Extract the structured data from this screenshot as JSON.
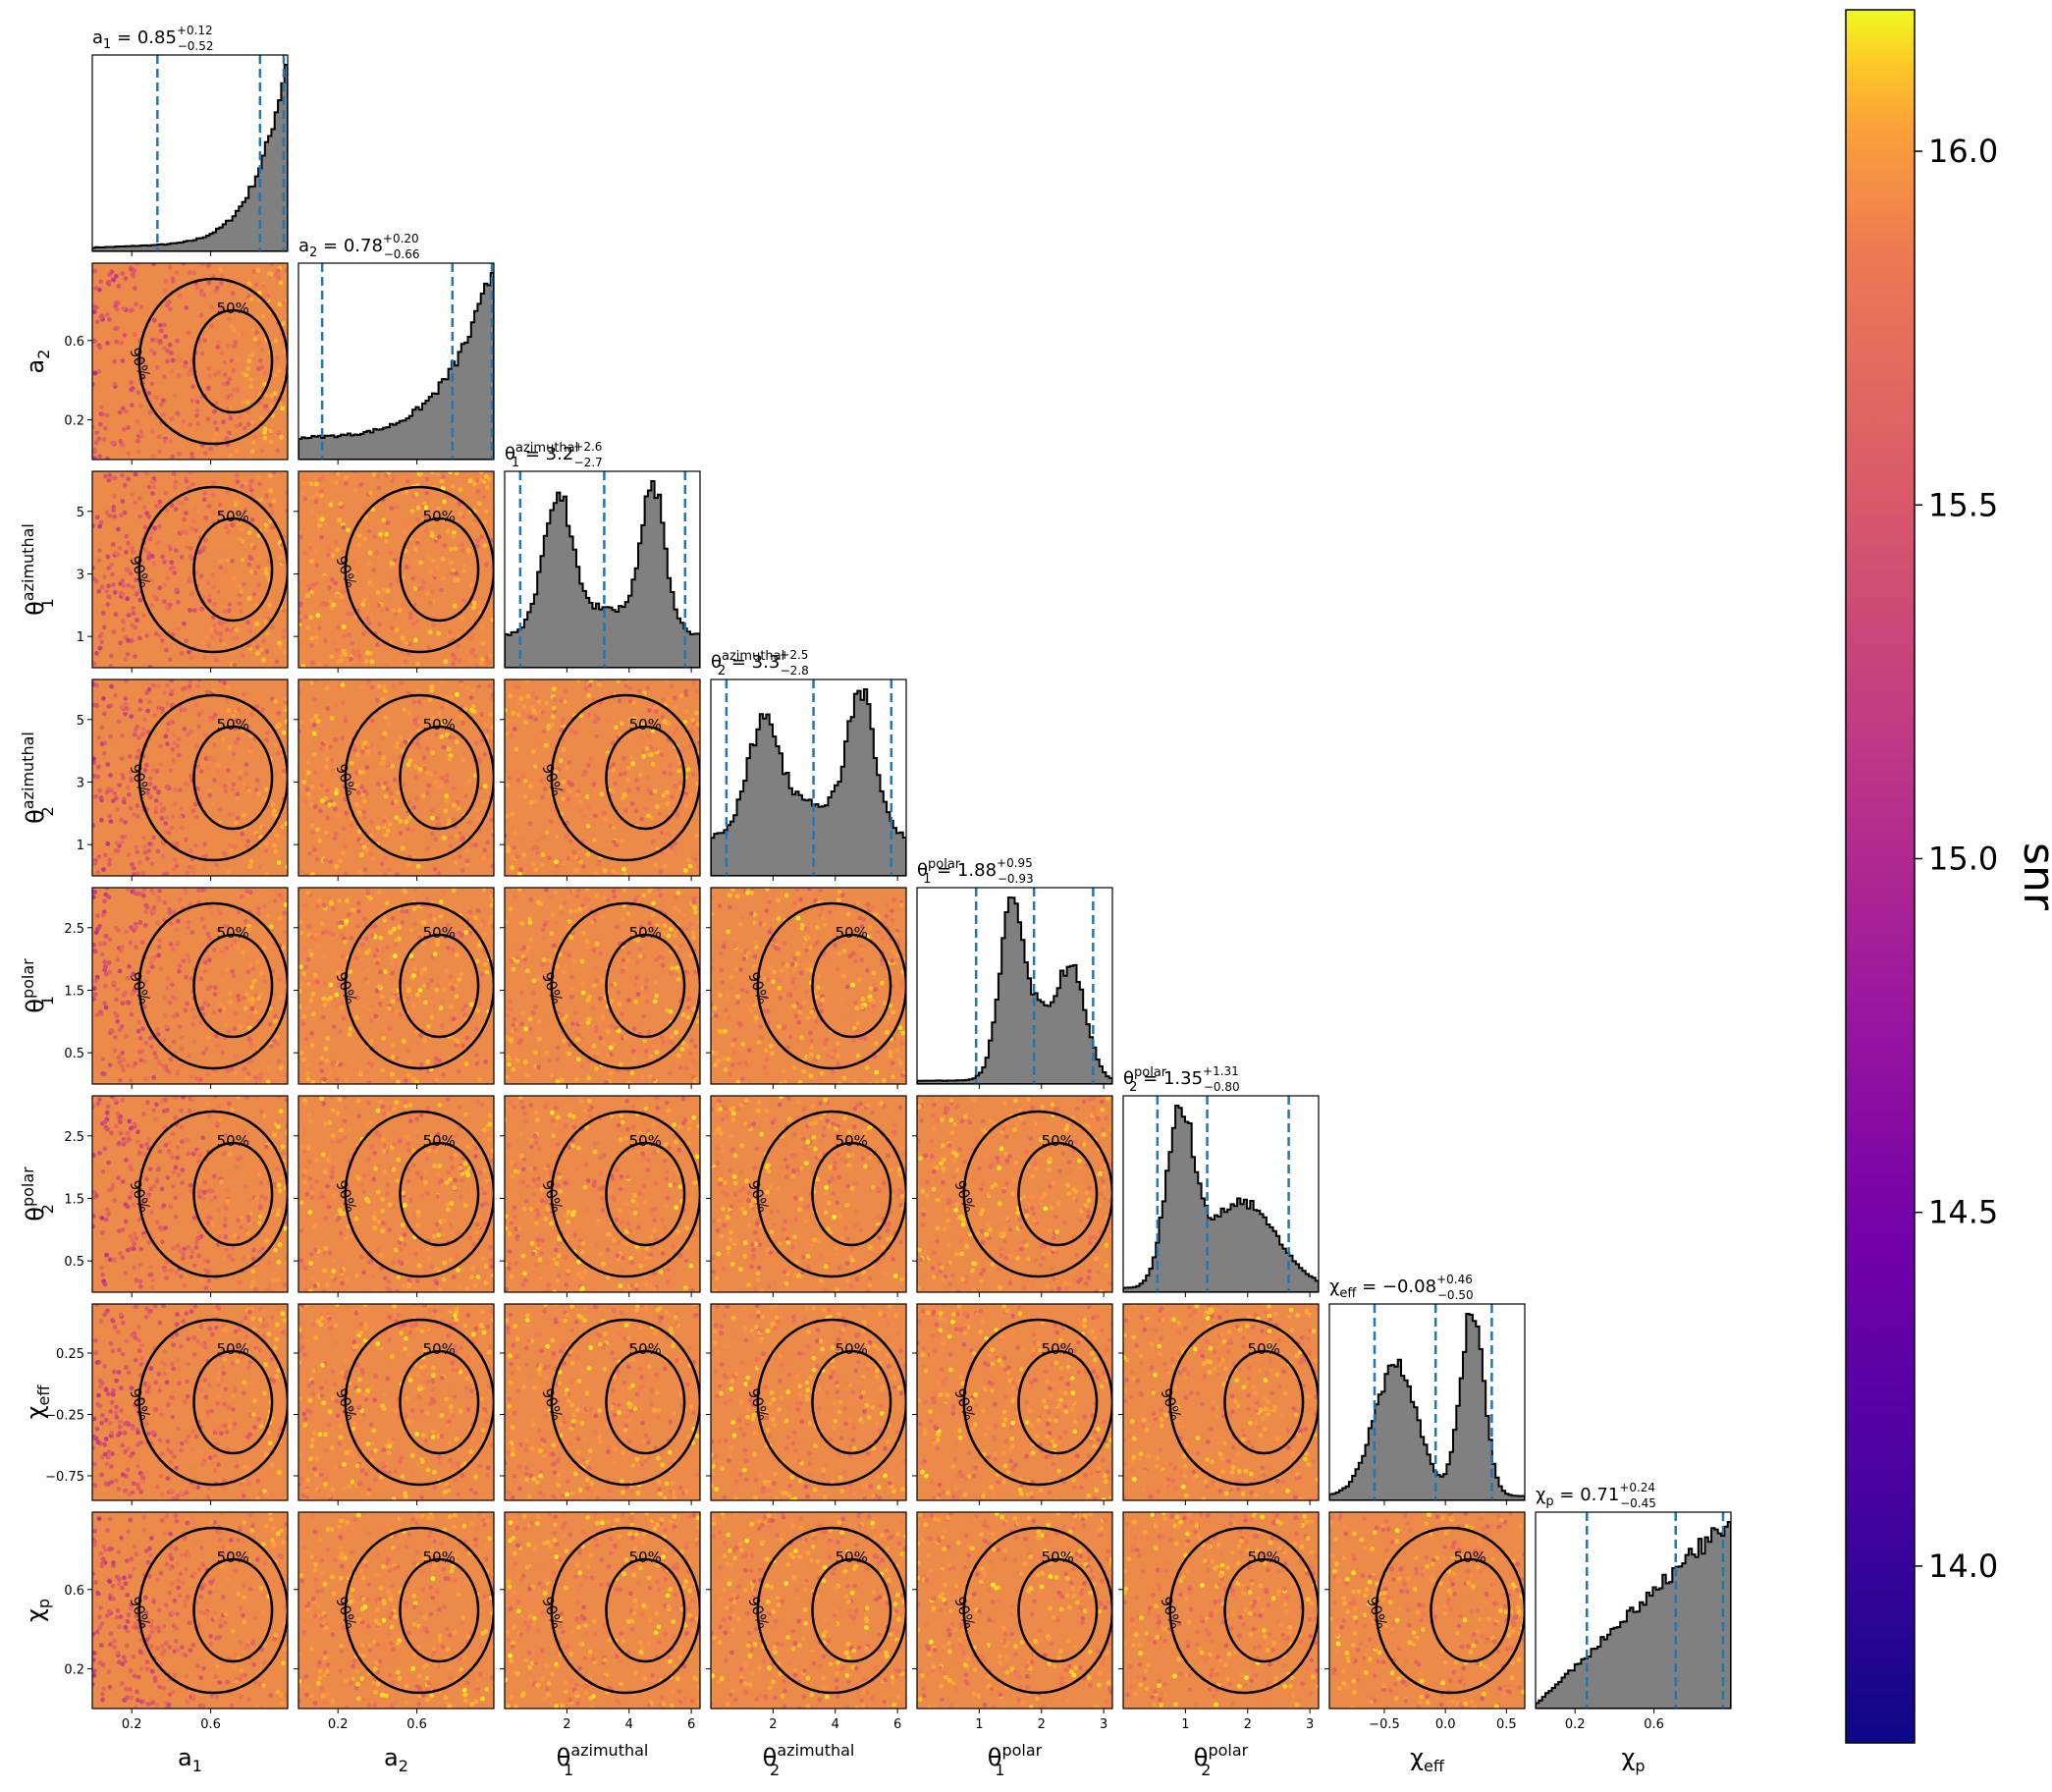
{
  "chart_data": {
    "type": "corner",
    "parameters": [
      {
        "key": "a1",
        "axis_label": "a₁",
        "display": "a",
        "sub": "1",
        "sup": "",
        "median": "0.85",
        "plus": "+0.12",
        "minus": "−0.52",
        "range": [
          0.0,
          0.99
        ],
        "ticks": [
          0.2,
          0.6
        ],
        "tick_labels": [
          "0.2",
          "0.6"
        ],
        "quantiles": [
          0.33,
          0.85,
          0.97
        ],
        "hist_shape": "rising_steep"
      },
      {
        "key": "a2",
        "axis_label": "a₂",
        "display": "a",
        "sub": "2",
        "sup": "",
        "median": "0.78",
        "plus": "+0.20",
        "minus": "−0.66",
        "range": [
          0.0,
          0.99
        ],
        "ticks": [
          0.2,
          0.6
        ],
        "tick_labels": [
          "0.2",
          "0.6"
        ],
        "quantiles": [
          0.12,
          0.78,
          0.98
        ],
        "hist_shape": "rising"
      },
      {
        "key": "theta1_az",
        "axis_label": "θ₁ azimuthal",
        "display": "θ",
        "sub": "1",
        "sup": "azimuthal",
        "median": "3.2",
        "plus": "+2.6",
        "minus": "−2.7",
        "range": [
          0.0,
          6.28
        ],
        "ticks": [
          2,
          4,
          6
        ],
        "tick_labels": [
          "2",
          "4",
          "6"
        ],
        "y_ticks": [
          1,
          3,
          5
        ],
        "y_tick_labels": [
          "1",
          "3",
          "5"
        ],
        "quantiles": [
          0.5,
          3.2,
          5.8
        ],
        "hist_shape": "bimodal_az"
      },
      {
        "key": "theta2_az",
        "axis_label": "θ₂ azimuthal",
        "display": "θ",
        "sub": "2",
        "sup": "azimuthal",
        "median": "3.3",
        "plus": "+2.5",
        "minus": "−2.8",
        "range": [
          0.0,
          6.28
        ],
        "ticks": [
          2,
          4,
          6
        ],
        "tick_labels": [
          "2",
          "4",
          "6"
        ],
        "y_ticks": [
          1,
          3,
          5
        ],
        "y_tick_labels": [
          "1",
          "3",
          "5"
        ],
        "quantiles": [
          0.5,
          3.3,
          5.8
        ],
        "hist_shape": "bimodal_az2"
      },
      {
        "key": "theta1_pol",
        "axis_label": "θ₁ polar",
        "display": "θ",
        "sub": "1",
        "sup": "polar",
        "median": "1.88",
        "plus": "+0.95",
        "minus": "−0.93",
        "range": [
          0.0,
          3.14
        ],
        "ticks": [
          1,
          2,
          3
        ],
        "tick_labels": [
          "1",
          "2",
          "3"
        ],
        "y_ticks": [
          0.5,
          1.5,
          2.5
        ],
        "y_tick_labels": [
          "0.5",
          "1.5",
          "2.5"
        ],
        "quantiles": [
          0.95,
          1.88,
          2.83
        ],
        "hist_shape": "bimodal_pol"
      },
      {
        "key": "theta2_pol",
        "axis_label": "θ₂ polar",
        "display": "θ",
        "sub": "2",
        "sup": "polar",
        "median": "1.35",
        "plus": "+1.31",
        "minus": "−0.80",
        "range": [
          0.0,
          3.14
        ],
        "ticks": [
          1,
          2,
          3
        ],
        "tick_labels": [
          "1",
          "2",
          "3"
        ],
        "y_ticks": [
          0.5,
          1.5,
          2.5
        ],
        "y_tick_labels": [
          "0.5",
          "1.5",
          "2.5"
        ],
        "quantiles": [
          0.55,
          1.35,
          2.66
        ],
        "hist_shape": "peak_shoulder"
      },
      {
        "key": "chi_eff",
        "axis_label": "χ eff",
        "display": "χ",
        "sub": "eff",
        "sup": "",
        "median": "−0.08",
        "plus": "+0.46",
        "minus": "−0.50",
        "range": [
          -0.95,
          0.65
        ],
        "ticks": [
          -0.5,
          0.0,
          0.5
        ],
        "tick_labels": [
          "−0.5",
          "0.0",
          "0.5"
        ],
        "y_ticks": [
          -0.75,
          -0.25,
          0.25
        ],
        "y_tick_labels": [
          "−0.75",
          "−0.25",
          "0.25"
        ],
        "quantiles": [
          -0.58,
          -0.08,
          0.38
        ],
        "hist_shape": "bimodal_eff"
      },
      {
        "key": "chi_p",
        "axis_label": "χp",
        "display": "χ",
        "sub": "p",
        "sup": "",
        "median": "0.71",
        "plus": "+0.24",
        "minus": "−0.45",
        "range": [
          0.0,
          0.99
        ],
        "ticks": [
          0.2,
          0.6
        ],
        "tick_labels": [
          "0.2",
          "0.6"
        ],
        "quantiles": [
          0.26,
          0.71,
          0.95
        ],
        "hist_shape": "rising_linear"
      }
    ],
    "contour_labels": [
      "50%",
      "90%"
    ],
    "colorbar": {
      "label": "snr",
      "colormap": "plasma",
      "range": [
        13.75,
        16.2
      ],
      "ticks": [
        14.0,
        14.5,
        15.0,
        15.5,
        16.0
      ],
      "tick_labels": [
        "14.0",
        "14.5",
        "15.0",
        "15.5",
        "16.0"
      ]
    },
    "histogram_fill": "#808080",
    "quantile_line_color": "#1f77b4",
    "contour_color": "#000000"
  }
}
